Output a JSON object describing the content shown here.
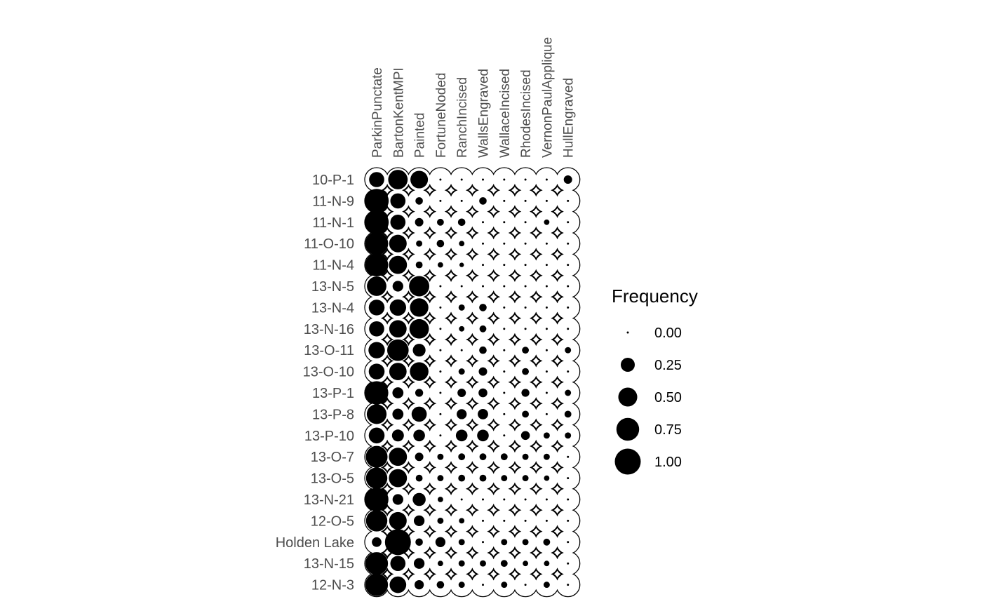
{
  "chart_data": {
    "type": "bubble-matrix",
    "title": "",
    "columns": [
      "ParkinPunctate",
      "BartonKentMPI",
      "Painted",
      "FortuneNoded",
      "RanchIncised",
      "WallsEngraved",
      "WallaceIncised",
      "RhodesIncised",
      "VernonPaulApplique",
      "HullEngraved"
    ],
    "rows": [
      "10-P-1",
      "11-N-9",
      "11-N-1",
      "11-O-10",
      "11-N-4",
      "13-N-5",
      "13-N-4",
      "13-N-16",
      "13-O-11",
      "13-O-10",
      "13-P-1",
      "13-P-8",
      "13-P-10",
      "13-O-7",
      "13-O-5",
      "13-N-21",
      "12-O-5",
      "Holden Lake",
      "13-N-15",
      "12-N-3"
    ],
    "values": [
      [
        0.3,
        0.53,
        0.42,
        0.0,
        0.0,
        0.0,
        0.0,
        0.0,
        0.0,
        0.07
      ],
      [
        0.85,
        0.3,
        0.05,
        0.0,
        0.0,
        0.05,
        0.0,
        0.0,
        0.0,
        0.0
      ],
      [
        0.85,
        0.3,
        0.07,
        0.04,
        0.05,
        0.0,
        0.0,
        0.0,
        0.02,
        0.0
      ],
      [
        0.77,
        0.42,
        0.03,
        0.05,
        0.02,
        0.0,
        0.0,
        0.0,
        0.0,
        0.0
      ],
      [
        0.77,
        0.45,
        0.04,
        0.02,
        0.01,
        0.0,
        0.0,
        0.0,
        0.0,
        0.0
      ],
      [
        0.53,
        0.13,
        0.58,
        0.0,
        0.0,
        0.0,
        0.0,
        0.0,
        0.0,
        0.0
      ],
      [
        0.33,
        0.36,
        0.47,
        0.0,
        0.03,
        0.05,
        0.0,
        0.0,
        0.0,
        0.0
      ],
      [
        0.3,
        0.41,
        0.53,
        0.0,
        0.02,
        0.04,
        0.0,
        0.0,
        0.0,
        0.0
      ],
      [
        0.36,
        0.66,
        0.2,
        0.0,
        0.0,
        0.05,
        0.0,
        0.04,
        0.0,
        0.03
      ],
      [
        0.33,
        0.41,
        0.48,
        0.0,
        0.03,
        0.07,
        0.0,
        0.04,
        0.0,
        0.0
      ],
      [
        0.79,
        0.14,
        0.06,
        0.0,
        0.07,
        0.08,
        0.0,
        0.06,
        0.0,
        0.03
      ],
      [
        0.55,
        0.14,
        0.3,
        0.0,
        0.11,
        0.12,
        0.0,
        0.04,
        0.0,
        0.04
      ],
      [
        0.33,
        0.17,
        0.16,
        0.0,
        0.16,
        0.16,
        0.0,
        0.08,
        0.03,
        0.03
      ],
      [
        0.68,
        0.45,
        0.07,
        0.03,
        0.04,
        0.04,
        0.04,
        0.03,
        0.03,
        0.0
      ],
      [
        0.65,
        0.45,
        0.04,
        0.03,
        0.04,
        0.04,
        0.03,
        0.03,
        0.02,
        0.0
      ],
      [
        0.81,
        0.13,
        0.21,
        0.02,
        0.0,
        0.0,
        0.0,
        0.0,
        0.0,
        0.0
      ],
      [
        0.65,
        0.42,
        0.13,
        0.03,
        0.02,
        0.0,
        0.0,
        0.0,
        0.0,
        0.0
      ],
      [
        0.1,
        1.0,
        0.05,
        0.11,
        0.03,
        0.0,
        0.03,
        0.03,
        0.04,
        0.0
      ],
      [
        0.74,
        0.3,
        0.13,
        0.02,
        0.03,
        0.03,
        0.04,
        0.02,
        0.02,
        0.0
      ],
      [
        0.74,
        0.37,
        0.09,
        0.05,
        0.03,
        0.0,
        0.03,
        0.0,
        0.03,
        0.0
      ]
    ],
    "legend": {
      "title": "Frequency",
      "values": [
        0.0,
        0.25,
        0.5,
        0.75,
        1.0
      ],
      "labels": [
        "0.00",
        "0.25",
        "0.50",
        "0.75",
        "1.00"
      ],
      "placement": "right"
    },
    "colors": {
      "marker": "#000000",
      "label": "#4d4d4d"
    }
  }
}
